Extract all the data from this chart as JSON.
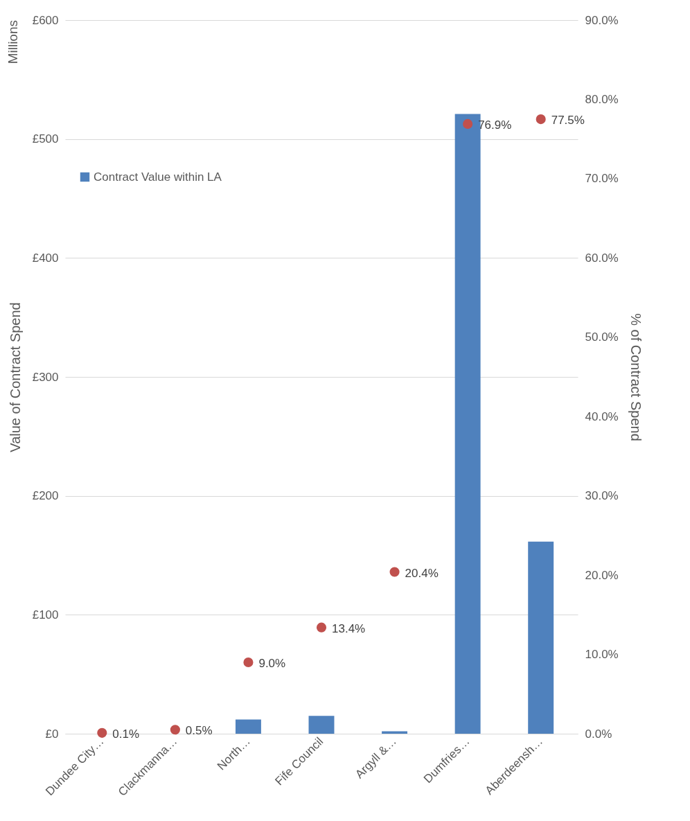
{
  "chart_data": {
    "type": "bar",
    "categories": [
      "Dundee City…",
      "Clackmanna…",
      "North…",
      "Fife Council",
      "Argyll &…",
      "Dumfries…",
      "Aberdeensh…"
    ],
    "ylabel": "Value of Contract Spend",
    "y2label": "% of Contract Spend",
    "annotations": [
      "Millions"
    ],
    "series": [
      {
        "name": "Contract Value within LA",
        "color": "#4f81bd",
        "values": [
          null,
          null,
          12,
          15,
          2,
          521,
          161.5
        ]
      },
      {
        "type": "scatter",
        "axis": "y2",
        "color": "#c0504d",
        "values": [
          0.1,
          0.5,
          9.0,
          13.4,
          20.4,
          76.9,
          77.5
        ],
        "value_labels": [
          "0.1%",
          "0.5%",
          "9.0%",
          "13.4%",
          "20.4%",
          "76.9%",
          "77.5%"
        ]
      }
    ],
    "ylim": [
      0,
      600
    ],
    "yticks": [
      {
        "value": 0,
        "label": "£0"
      },
      {
        "value": 100,
        "label": "£100"
      },
      {
        "value": 200,
        "label": "£200"
      },
      {
        "value": 300,
        "label": "£300"
      },
      {
        "value": 400,
        "label": "£400"
      },
      {
        "value": 500,
        "label": "£500"
      },
      {
        "value": 600,
        "label": "£600"
      }
    ],
    "y2lim": [
      0,
      90
    ],
    "y2ticks": [
      {
        "value": 0,
        "label": "0.0%"
      },
      {
        "value": 10,
        "label": "10.0%"
      },
      {
        "value": 20,
        "label": "20.0%"
      },
      {
        "value": 30,
        "label": "30.0%"
      },
      {
        "value": 40,
        "label": "40.0%"
      },
      {
        "value": 50,
        "label": "50.0%"
      },
      {
        "value": 60,
        "label": "60.0%"
      },
      {
        "value": 70,
        "label": "70.0%"
      },
      {
        "value": 80,
        "label": "80.0%"
      },
      {
        "value": 90,
        "label": "90.0%"
      }
    ],
    "grid": "y",
    "legend": "top left",
    "marker": "circle"
  }
}
